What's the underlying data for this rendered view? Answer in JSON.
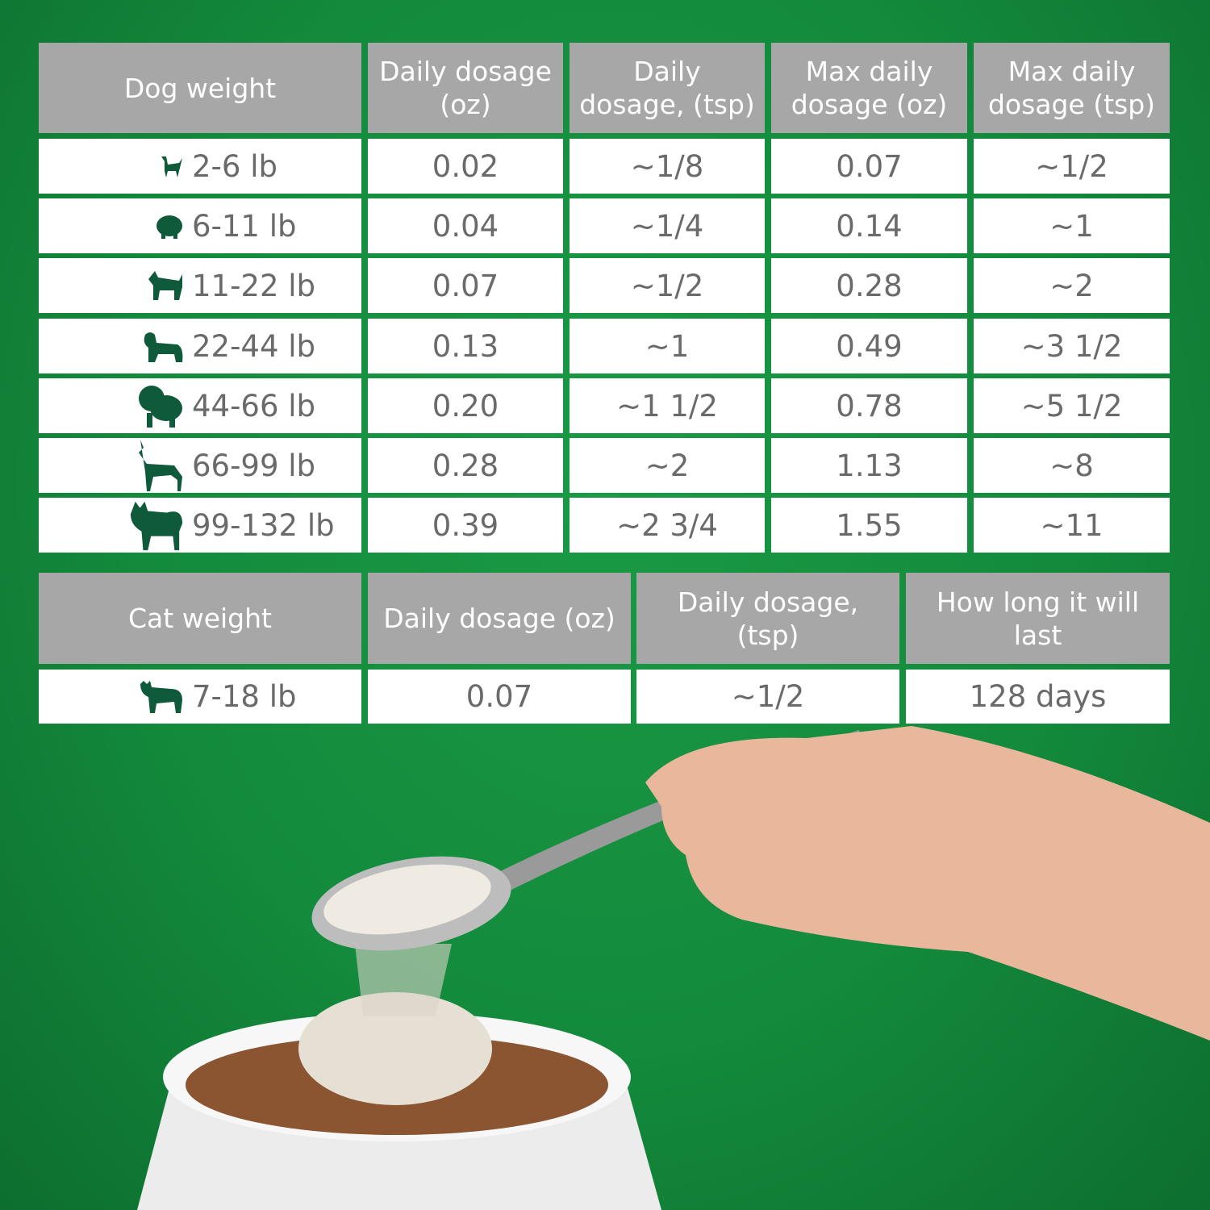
{
  "colors": {
    "background": "#15873a",
    "header": "#a7a7a7",
    "cell_text": "#6a6a6a",
    "icon": "#0f5a3a"
  },
  "dog_table": {
    "headers": [
      "Dog weight",
      "Daily dosage (oz)",
      "Daily dosage, (tsp)",
      "Max daily dosage (oz)",
      "Max daily dosage (tsp)"
    ],
    "rows": [
      {
        "icon": "chihuahua-icon",
        "weight": "2-6 lb",
        "daily_oz": "0.02",
        "daily_tsp": "~1/8",
        "max_oz": "0.07",
        "max_tsp": "~1/2"
      },
      {
        "icon": "pomeranian-icon",
        "weight": "6-11 lb",
        "daily_oz": "0.04",
        "daily_tsp": "~1/4",
        "max_oz": "0.14",
        "max_tsp": "~1"
      },
      {
        "icon": "terrier-icon",
        "weight": "11-22 lb",
        "daily_oz": "0.07",
        "daily_tsp": "~1/2",
        "max_oz": "0.28",
        "max_tsp": "~2"
      },
      {
        "icon": "spaniel-icon",
        "weight": "22-44 lb",
        "daily_oz": "0.13",
        "daily_tsp": "~1",
        "max_oz": "0.49",
        "max_tsp": "~3 1/2"
      },
      {
        "icon": "chow-icon",
        "weight": "44-66 lb",
        "daily_oz": "0.20",
        "daily_tsp": "~1 1/2",
        "max_oz": "0.78",
        "max_tsp": "~5 1/2"
      },
      {
        "icon": "doberman-icon",
        "weight": "66-99 lb",
        "daily_oz": "0.28",
        "daily_tsp": "~2",
        "max_oz": "1.13",
        "max_tsp": "~8"
      },
      {
        "icon": "akita-icon",
        "weight": "99-132 lb",
        "daily_oz": "0.39",
        "daily_tsp": "~2 3/4",
        "max_oz": "1.55",
        "max_tsp": "~11"
      }
    ]
  },
  "cat_table": {
    "headers": [
      "Cat weight",
      "Daily dosage (oz)",
      "Daily dosage, (tsp)",
      "How long it will last"
    ],
    "rows": [
      {
        "icon": "cat-icon",
        "weight": "7-18 lb",
        "daily_oz": "0.07",
        "daily_tsp": "~1/2",
        "duration": "128 days"
      }
    ]
  }
}
